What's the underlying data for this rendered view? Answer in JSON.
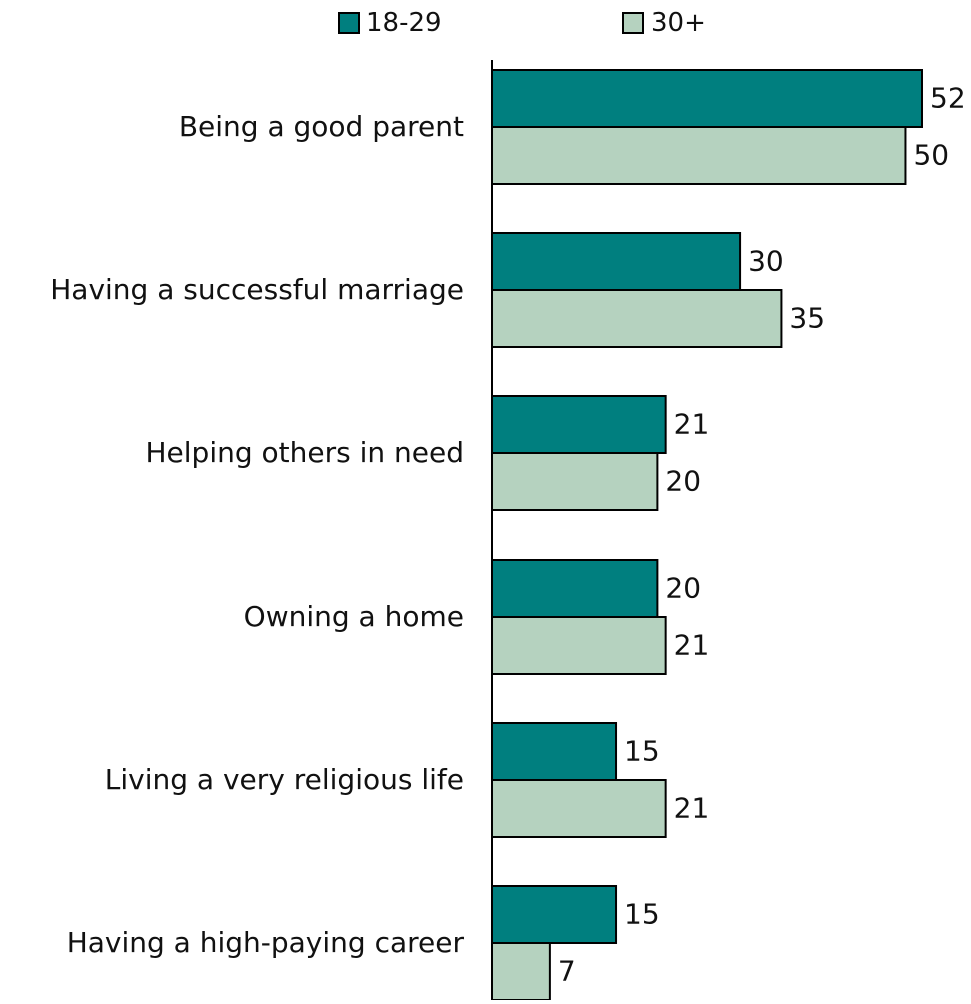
{
  "chart_data": {
    "type": "bar",
    "orientation": "horizontal",
    "title": "",
    "xlabel": "",
    "ylabel": "",
    "categories": [
      "Being a good parent",
      "Having a successful marriage",
      "Helping others in need",
      "Owning a home",
      "Living a very religious life",
      "Having a high-paying career"
    ],
    "series": [
      {
        "name": "18-29",
        "color": "#007f7f",
        "values": [
          52,
          30,
          21,
          20,
          15,
          15
        ]
      },
      {
        "name": "30+",
        "color": "#b5d2bf",
        "values": [
          50,
          35,
          20,
          21,
          21,
          7
        ]
      }
    ],
    "legend_position": "top",
    "grid": false,
    "show_data_labels": true,
    "xlim": [
      0,
      52
    ]
  }
}
